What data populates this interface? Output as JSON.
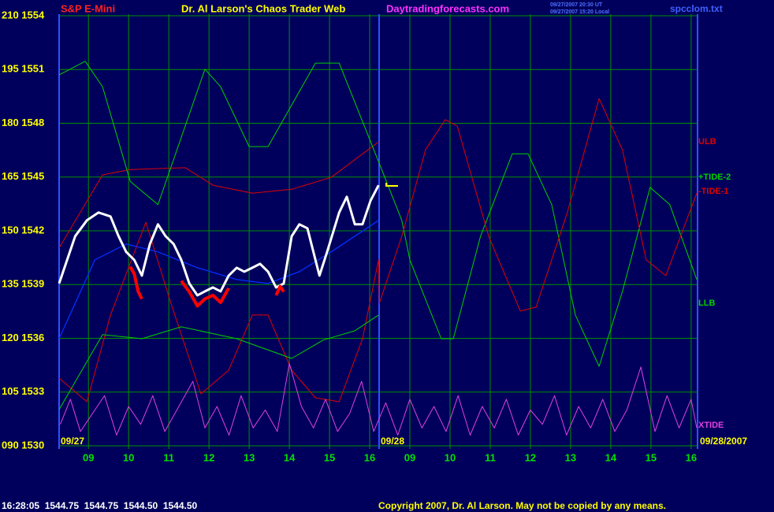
{
  "chart_data": {
    "type": "line",
    "symbol": "S&P E-Mini",
    "title": "Dr. Al Larson's Chaos Trader Web",
    "website": "Daytradingforecasts.com",
    "timestamp": [
      "09/27/2007 20:30 UT",
      "09/27/2007 15:20 Local"
    ],
    "filename": "spcclom.txt",
    "quote_line": "16:28:05  1544.75  1544.75  1544.50  1544.50",
    "copyright": "Copyright 2007, Dr. Al Larson. May not be copied by any means.",
    "date_labels": [
      "09/27",
      "09/28",
      "09/28/2007"
    ],
    "xlim": [
      -0.73,
      15.16
    ],
    "ylim": [
      90,
      210
    ],
    "grid": true,
    "yticks": [
      {
        "value": 210,
        "label": "210 1554"
      },
      {
        "value": 195,
        "label": "195 1551"
      },
      {
        "value": 180,
        "label": "180 1548"
      },
      {
        "value": 165,
        "label": "165 1545"
      },
      {
        "value": 150,
        "label": "150 1542"
      },
      {
        "value": 135,
        "label": "135 1539"
      },
      {
        "value": 120,
        "label": "120 1536"
      },
      {
        "value": 105,
        "label": "105 1533"
      },
      {
        "value": 90,
        "label": "090 1530"
      }
    ],
    "xticks": [
      {
        "value": 0,
        "label": "09"
      },
      {
        "value": 1,
        "label": "10"
      },
      {
        "value": 2,
        "label": "11"
      },
      {
        "value": 3,
        "label": "12"
      },
      {
        "value": 4,
        "label": "13"
      },
      {
        "value": 5,
        "label": "14"
      },
      {
        "value": 6,
        "label": "15"
      },
      {
        "value": 7,
        "label": "16"
      },
      {
        "value": 8,
        "label": "09"
      },
      {
        "value": 9,
        "label": "10"
      },
      {
        "value": 10,
        "label": "11"
      },
      {
        "value": 11,
        "label": "12"
      },
      {
        "value": 12,
        "label": "13"
      },
      {
        "value": 13,
        "label": "14"
      },
      {
        "value": 14,
        "label": "15"
      },
      {
        "value": 15,
        "label": "16"
      }
    ],
    "series": [
      {
        "name": "ULB",
        "color": "#e00000",
        "x": [
          -0.73,
          0.35,
          1.04,
          2.41,
          3.1,
          4.08,
          5.06,
          6.04,
          7.22
        ],
        "values": [
          145.2,
          165.6,
          167.1,
          167.6,
          162.7,
          160.5,
          161.6,
          164.9,
          174.8
        ]
      },
      {
        "name": "+TIDE-2",
        "color": "#00d000",
        "x": [
          -0.73,
          -0.08,
          0.35,
          1.04,
          1.73,
          2.9,
          3.29,
          4.0,
          4.47,
          5.65,
          6.24,
          7.22,
          7.8,
          8.0,
          8.78,
          9.08,
          9.76,
          10.55,
          10.94,
          11.53,
          12.12,
          12.71,
          13.29,
          13.98,
          14.47,
          15.14
        ],
        "values": [
          193.5,
          197.3,
          190.2,
          163.8,
          157.3,
          195.1,
          190.2,
          173.5,
          173.5,
          196.8,
          196.8,
          169.3,
          152.9,
          141.9,
          119.9,
          119.9,
          148.5,
          171.5,
          171.5,
          157.3,
          126.5,
          112.2,
          133.1,
          162.1,
          157.3,
          136.4
        ]
      },
      {
        "name": "-TIDE-1",
        "color": "#e00000",
        "x": [
          -0.73,
          -0.04,
          0.55,
          1.43,
          2.02,
          2.8,
          3.49,
          4.08,
          4.47,
          5.06,
          5.65,
          6.24,
          6.82,
          7.22,
          7.24,
          7.8,
          8.39,
          8.88,
          9.18,
          9.96,
          10.75,
          11.14,
          11.92,
          12.71,
          13.29,
          13.88,
          14.37,
          15.14
        ],
        "values": [
          108.9,
          102.3,
          126.5,
          152.4,
          130.9,
          104.5,
          111.1,
          126.5,
          126.5,
          111.1,
          103.4,
          102.3,
          119.9,
          141.9,
          129.8,
          148.5,
          172.6,
          181,
          179.2,
          148.5,
          127.6,
          128.7,
          155.1,
          186.9,
          172.6,
          141.9,
          137.5,
          160.5
        ]
      },
      {
        "name": "LLB",
        "color": "#00d000",
        "x": [
          -0.73,
          0.35,
          1.33,
          2.31,
          3.69,
          5.06,
          5.84,
          6.63,
          7.22
        ],
        "values": [
          100.1,
          121,
          119.9,
          123.2,
          119.9,
          114.4,
          119.5,
          122.1,
          126.5
        ]
      },
      {
        "name": "XTIDE",
        "color": "#e040e0",
        "x": [
          -0.7,
          -0.45,
          -0.2,
          0.1,
          0.4,
          0.7,
          1.0,
          1.3,
          1.6,
          1.9,
          2.2,
          2.6,
          2.9,
          3.2,
          3.5,
          3.8,
          4.1,
          4.4,
          4.7,
          5.0,
          5.3,
          5.6,
          5.9,
          6.2,
          6.5,
          6.8,
          7.1,
          7.4,
          7.7,
          8.0,
          8.3,
          8.6,
          8.9,
          9.2,
          9.5,
          9.8,
          10.1,
          10.4,
          10.7,
          11.0,
          11.3,
          11.6,
          11.9,
          12.2,
          12.5,
          12.8,
          13.1,
          13.4,
          13.75,
          14.1,
          14.4,
          14.7,
          15.0,
          15.14
        ],
        "values": [
          96,
          103,
          94,
          99,
          104,
          93,
          101,
          96,
          104,
          94,
          100,
          108,
          95,
          101,
          93,
          104,
          95,
          100,
          94,
          113,
          101,
          95,
          103,
          94,
          99,
          108,
          94,
          102,
          93,
          103,
          95,
          101,
          94,
          104,
          93,
          101,
          95,
          103,
          93,
          100,
          96,
          104,
          93,
          101,
          95,
          103,
          94,
          100,
          112,
          94,
          104,
          95,
          103,
          95
        ]
      },
      {
        "color": "#0030ff",
        "x": [
          -0.73,
          0.16,
          0.94,
          1.73,
          2.71,
          3.69,
          4.47,
          5.25,
          6.04,
          7.22
        ],
        "values": [
          119.9,
          141.9,
          146.3,
          144.1,
          139.7,
          136.4,
          135.3,
          138.6,
          144.1,
          152.9
        ]
      },
      {
        "color": "#ffffff",
        "x": [
          -0.73,
          -0.53,
          -0.33,
          -0.04,
          0.25,
          0.55,
          0.75,
          0.94,
          1.14,
          1.33,
          1.53,
          1.73,
          1.92,
          2.12,
          2.31,
          2.51,
          2.71,
          2.9,
          3.1,
          3.29,
          3.49,
          3.69,
          3.88,
          4.08,
          4.27,
          4.47,
          4.67,
          4.86,
          5.06,
          5.25,
          5.45,
          5.65,
          5.75,
          5.94,
          6.24,
          6.43,
          6.63,
          6.82,
          7.02,
          7.22
        ],
        "values": [
          135.3,
          141.9,
          148.5,
          152.9,
          155.1,
          154,
          148.5,
          144.1,
          141.9,
          137.5,
          146.3,
          151.8,
          148.5,
          146.3,
          141.9,
          135.3,
          132,
          133.1,
          134.2,
          133.1,
          137.5,
          139.7,
          138.6,
          139.7,
          140.8,
          138.6,
          134.2,
          135.3,
          148.5,
          151.8,
          150.7,
          141.9,
          137.5,
          144.1,
          155.1,
          159.5,
          151.8,
          151.8,
          158.4,
          162.7
        ]
      },
      {
        "color": "#ff0000",
        "x": [
          1.04,
          1.14,
          1.24,
          1.33,
          2.0,
          2.31,
          2.51,
          2.71,
          2.9,
          3.1,
          3.29,
          3.49,
          4.0,
          4.67,
          4.77,
          4.86
        ],
        "values": [
          140,
          138,
          133,
          131,
          null,
          136,
          133,
          129,
          131,
          132,
          130,
          134,
          null,
          132,
          134.5,
          133
        ]
      }
    ]
  }
}
